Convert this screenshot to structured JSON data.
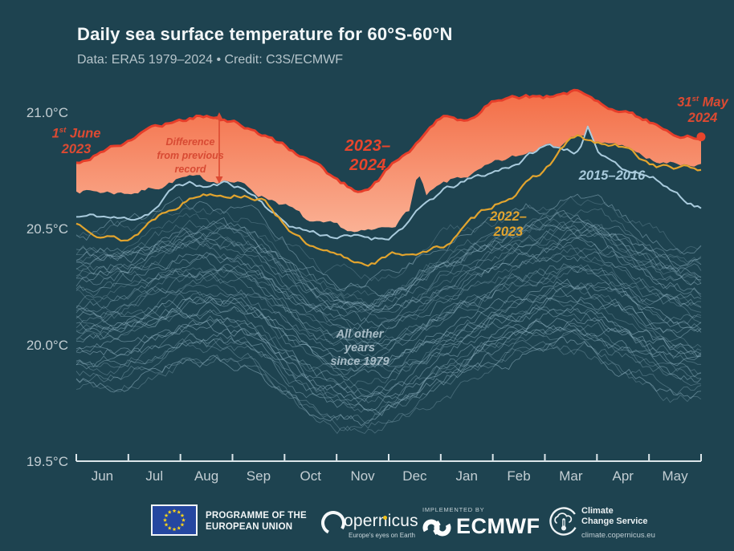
{
  "header": {
    "title": "Daily sea surface temperature for 60°S-60°N",
    "subtitle": "Data: ERA5 1979–2024 • Credit: C3S/ECMWF"
  },
  "annotations": {
    "start_date": {
      "day": "1",
      "sup": "st",
      "month": "June",
      "year": "2023"
    },
    "end_date": {
      "day": "31",
      "sup": "st",
      "month": "May",
      "year": "2024"
    },
    "diff_note_lines": [
      "Difference",
      "from previous",
      "record"
    ],
    "other_years_lines": [
      "All other years",
      "since 1979"
    ]
  },
  "colors": {
    "background": "#1e4350",
    "record_line": "#e63e2a",
    "band_top": "#f36b44",
    "band_bottom": "#fcc3a9",
    "line_2015": "#a9cbdd",
    "line_2022": "#e2a42e",
    "other_years": "#97bac9",
    "axis": "#dce6ea",
    "tick_text": "#c3ced3",
    "annotation_red": "#dc4a32",
    "end_dot": "#e8452c"
  },
  "chart_data": {
    "type": "line",
    "title": "Daily sea surface temperature for 60°S-60°N",
    "subtitle": "Data: ERA5 1979–2024 • Credit: C3S/ECMWF",
    "x_axis": {
      "months": [
        "Jun",
        "Jul",
        "Aug",
        "Sep",
        "Oct",
        "Nov",
        "Dec",
        "Jan",
        "Feb",
        "Mar",
        "Apr",
        "May"
      ],
      "start_label": "1st June 2023",
      "end_label": "31st May 2024"
    },
    "y_axis": {
      "unit": "°C",
      "ticks": [
        21.0,
        20.5,
        20.0,
        19.5
      ],
      "tick_labels": [
        "21.0°C",
        "20.5°C",
        "20.0°C",
        "19.5°C"
      ],
      "range": [
        19.5,
        21.15
      ],
      "grid": false
    },
    "anchor_resolution": "semi-monthly estimates, 25 points from 1 Jun to 31 May",
    "series": [
      {
        "name": "2023–2024",
        "color": "#e63e2a",
        "values": [
          20.78,
          20.84,
          20.88,
          20.94,
          20.97,
          20.99,
          20.96,
          20.91,
          20.85,
          20.79,
          20.71,
          20.67,
          20.76,
          20.86,
          20.97,
          20.96,
          21.06,
          21.08,
          21.07,
          21.09,
          21.06,
          21.01,
          20.96,
          20.92,
          20.9
        ],
        "spikes": []
      },
      {
        "name": "2015–2016",
        "color": "#a9cbdd",
        "values": [
          20.55,
          20.55,
          20.54,
          20.59,
          20.69,
          20.68,
          20.69,
          20.63,
          20.53,
          20.49,
          20.47,
          20.46,
          20.47,
          20.56,
          20.65,
          20.7,
          20.74,
          20.79,
          20.85,
          20.84,
          20.82,
          20.77,
          20.73,
          20.66,
          20.6
        ],
        "spikes": [
          {
            "day": 298,
            "amplitude": 0.1,
            "halfwidth": 5
          }
        ]
      },
      {
        "name": "2022–2023",
        "color": "#e2a42e",
        "values": [
          20.52,
          20.49,
          20.46,
          20.55,
          20.62,
          20.66,
          20.66,
          20.64,
          20.53,
          20.42,
          20.37,
          20.35,
          20.38,
          20.4,
          20.42,
          20.51,
          20.6,
          20.67,
          20.75,
          20.88,
          20.86,
          20.84,
          20.78,
          20.76,
          20.75
        ],
        "spikes": []
      },
      {
        "name": "previous record",
        "role": "lower edge of shaded difference band (pre-2023 daily record)",
        "color": "band-boundary",
        "values": [
          20.67,
          20.66,
          20.66,
          20.68,
          20.72,
          20.7,
          20.71,
          20.65,
          20.61,
          20.52,
          20.49,
          20.47,
          20.5,
          20.6,
          20.67,
          20.72,
          20.76,
          20.8,
          20.84,
          20.88,
          20.86,
          20.85,
          20.79,
          20.77,
          20.755
        ],
        "spikes": [
          {
            "day": 199,
            "amplitude": 0.13,
            "halfwidth": 5
          },
          {
            "day": 298,
            "amplitude": 0.07,
            "halfwidth": 4
          }
        ]
      }
    ],
    "other_years": {
      "label": "All other years since 1979",
      "count": 43,
      "color": "#97bac9",
      "baseline": [
        20.3,
        20.31,
        20.33,
        20.36,
        20.4,
        20.41,
        20.4,
        20.36,
        20.28,
        20.2,
        20.15,
        20.13,
        20.15,
        20.2,
        20.27,
        20.32,
        20.37,
        20.41,
        20.44,
        20.45,
        20.43,
        20.38,
        20.32,
        20.28,
        20.26
      ],
      "offset_range": [
        -0.46,
        0.16
      ],
      "note": "spaghetti of individual years, kept below the previous-record envelope"
    }
  },
  "footer": {
    "eu_line1": "PROGRAMME OF THE",
    "eu_line2": "EUROPEAN UNION",
    "copernicus_name": "Copernicus",
    "copernicus_tagline": "Europe's eyes on Earth",
    "implemented_by": "IMPLEMENTED BY",
    "ecmwf_name": "ECMWF",
    "ccs_line1": "Climate",
    "ccs_line2": "Change Service",
    "ccs_url": "climate.copernicus.eu"
  }
}
